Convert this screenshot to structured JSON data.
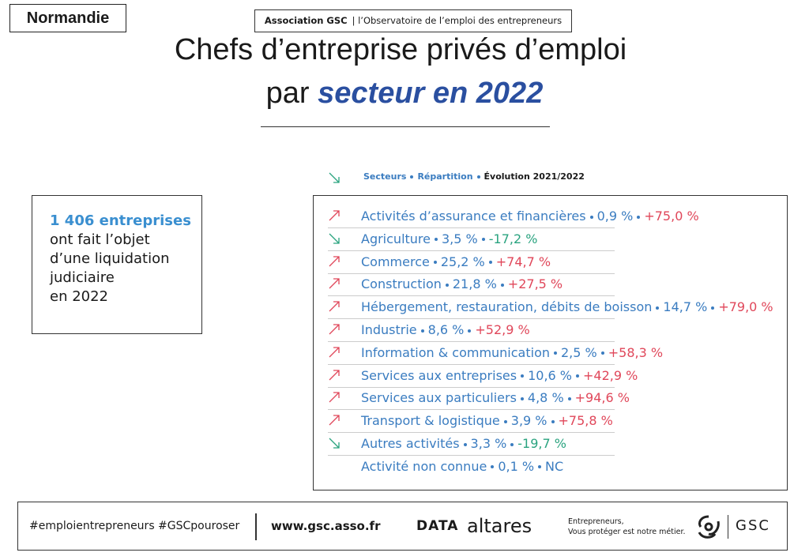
{
  "header": {
    "region": "Normandie",
    "association": "Association GSC",
    "observatoire": "l’Observatoire de l’emploi des entrepreneurs"
  },
  "title": {
    "line1": "Chefs d’entreprise privés d’emploi",
    "line2_prefix": "par",
    "line2_highlight": "secteur en 2022"
  },
  "legend": [
    "Secteurs",
    "Répartition",
    "Évolution 2021/2022"
  ],
  "stat": {
    "highlight": "1 406 entreprises",
    "lines": [
      "ont fait l’objet",
      "d’une liquidation",
      "judiciaire",
      "en 2022"
    ]
  },
  "sectors": [
    {
      "name": "Activités d’assurance et financières",
      "share": "0,9 %",
      "evolution": "+75,0 %"
    },
    {
      "name": "Agriculture",
      "share": "3,5 %",
      "evolution": "-17,2 %"
    },
    {
      "name": "Commerce",
      "share": "25,2 %",
      "evolution": "+74,7 %"
    },
    {
      "name": "Construction",
      "share": "21,8 %",
      "evolution": "+27,5 %"
    },
    {
      "name": "Hébergement, restauration, débits de boisson",
      "share": "14,7 %",
      "evolution": "+79,0 %"
    },
    {
      "name": "Industrie",
      "share": "8,6 %",
      "evolution": "+52,9 %"
    },
    {
      "name": "Information & communication",
      "share": "2,5 %",
      "evolution": "+58,3 %"
    },
    {
      "name": "Services aux entreprises",
      "share": "10,6 %",
      "evolution": "+42,9 %"
    },
    {
      "name": "Services aux particuliers",
      "share": "4,8 %",
      "evolution": "+94,6 %"
    },
    {
      "name": "Transport & logistique",
      "share": "3,9 %",
      "evolution": "+75,8 %"
    },
    {
      "name": "Autres activités",
      "share": "3,3 %",
      "evolution": "-19,7 %"
    },
    {
      "name": "Activité non connue",
      "share": "0,1 %",
      "evolution": "NC"
    }
  ],
  "footer": {
    "hashtags": "#emploientrepreneurs #GSCpouroser",
    "website": "www.gsc.asso.fr",
    "logo_data": "DATA",
    "logo_altares": "altares",
    "tagline1": "Entrepreneurs,",
    "tagline2": "Vous protéger est notre métier.",
    "logo_gsc": "GSC"
  }
}
